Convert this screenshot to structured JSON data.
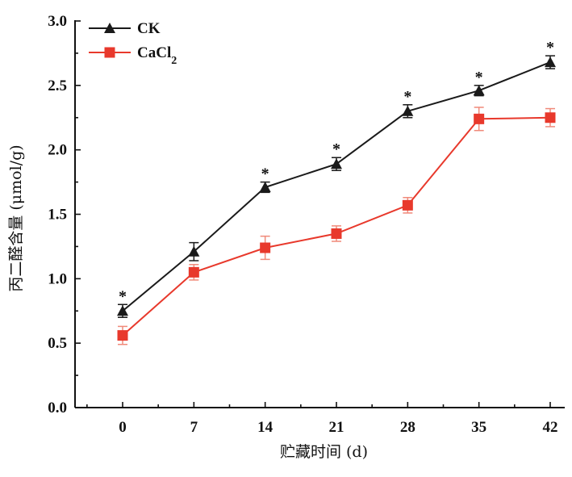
{
  "chart_data": {
    "type": "line",
    "title": "",
    "xlabel": "贮藏时间 (d)",
    "ylabel": "丙二醛含量 (μmol/g)",
    "x": [
      0,
      7,
      14,
      21,
      28,
      35,
      42
    ],
    "x_ticks": [
      "0",
      "7",
      "14",
      "21",
      "28",
      "35",
      "42"
    ],
    "ylim": [
      0.0,
      3.0
    ],
    "y_ticks": [
      "0.0",
      "0.5",
      "1.0",
      "1.5",
      "2.0",
      "2.5",
      "3.0"
    ],
    "grid": false,
    "legend_position": "top-left",
    "series": [
      {
        "name": "CK",
        "color": "#1a1a1a",
        "marker": "triangle",
        "values": [
          0.75,
          1.21,
          1.71,
          1.89,
          2.3,
          2.46,
          2.68
        ],
        "errors": [
          0.05,
          0.07,
          0.04,
          0.05,
          0.05,
          0.04,
          0.05
        ]
      },
      {
        "name": "CaCl",
        "name_subscript": "2",
        "color": "#e8392c",
        "error_color": "#f08a7a",
        "marker": "square",
        "values": [
          0.56,
          1.05,
          1.24,
          1.35,
          1.57,
          2.24,
          2.25
        ],
        "errors": [
          0.07,
          0.06,
          0.09,
          0.06,
          0.06,
          0.09,
          0.07
        ]
      }
    ],
    "annotations": {
      "significance_marker": "*",
      "significant_x": [
        0,
        14,
        21,
        28,
        35,
        42
      ]
    }
  }
}
